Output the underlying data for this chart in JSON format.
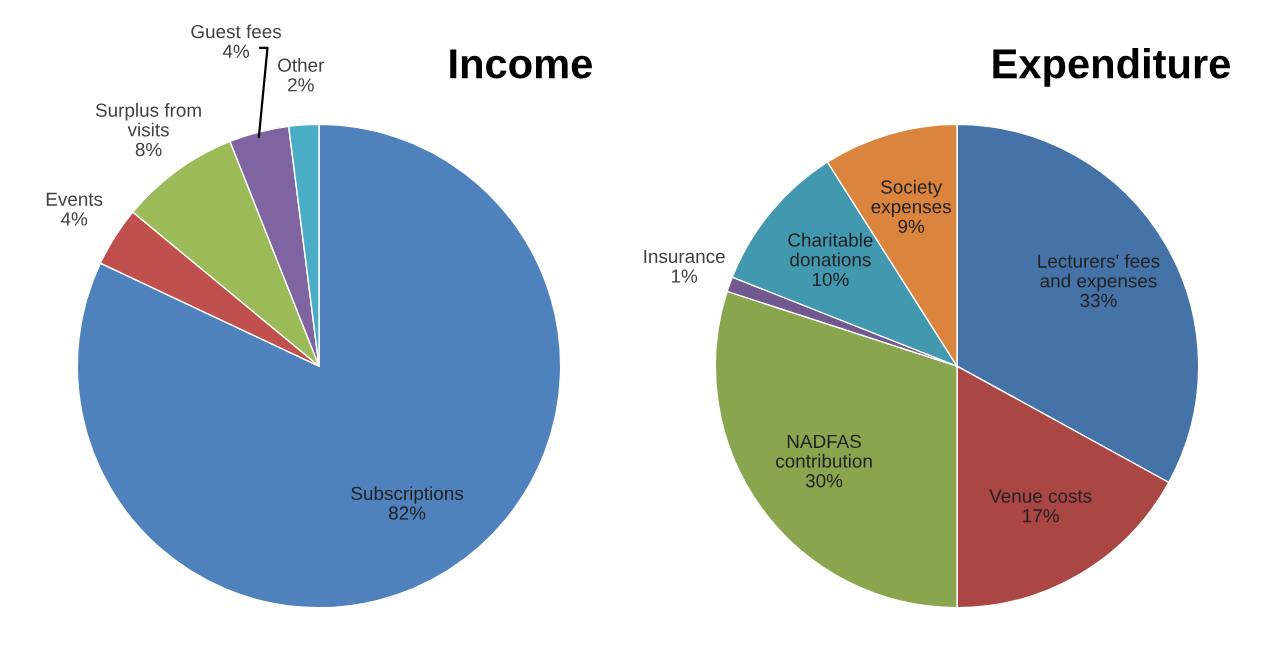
{
  "chart_data": [
    {
      "type": "pie",
      "title": "Income",
      "categories": [
        "Subscriptions",
        "Events",
        "Surplus from\nvisits",
        "Guest fees",
        "Other"
      ],
      "values": [
        82,
        4,
        8,
        4,
        2
      ],
      "colors": [
        "#4f81bd",
        "#c0504d",
        "#9bbb59",
        "#8064a2",
        "#4bacc6"
      ],
      "value_labels": [
        "82%",
        "4%",
        "8%",
        "4%",
        "2%"
      ]
    },
    {
      "type": "pie",
      "title": "Expenditure",
      "categories": [
        "Lecturers' fees\nand expenses",
        "Venue costs",
        "NADFAS\ncontribution",
        "Insurance",
        "Charitable\ndonations",
        "Society\nexpenses"
      ],
      "values": [
        33,
        17,
        30,
        1,
        10,
        9
      ],
      "colors": [
        "#4572a7",
        "#aa4643",
        "#89a54e",
        "#71588f",
        "#4198af",
        "#db843d"
      ],
      "value_labels": [
        "33%",
        "17%",
        "30%",
        "1%",
        "10%",
        "9%"
      ]
    }
  ]
}
